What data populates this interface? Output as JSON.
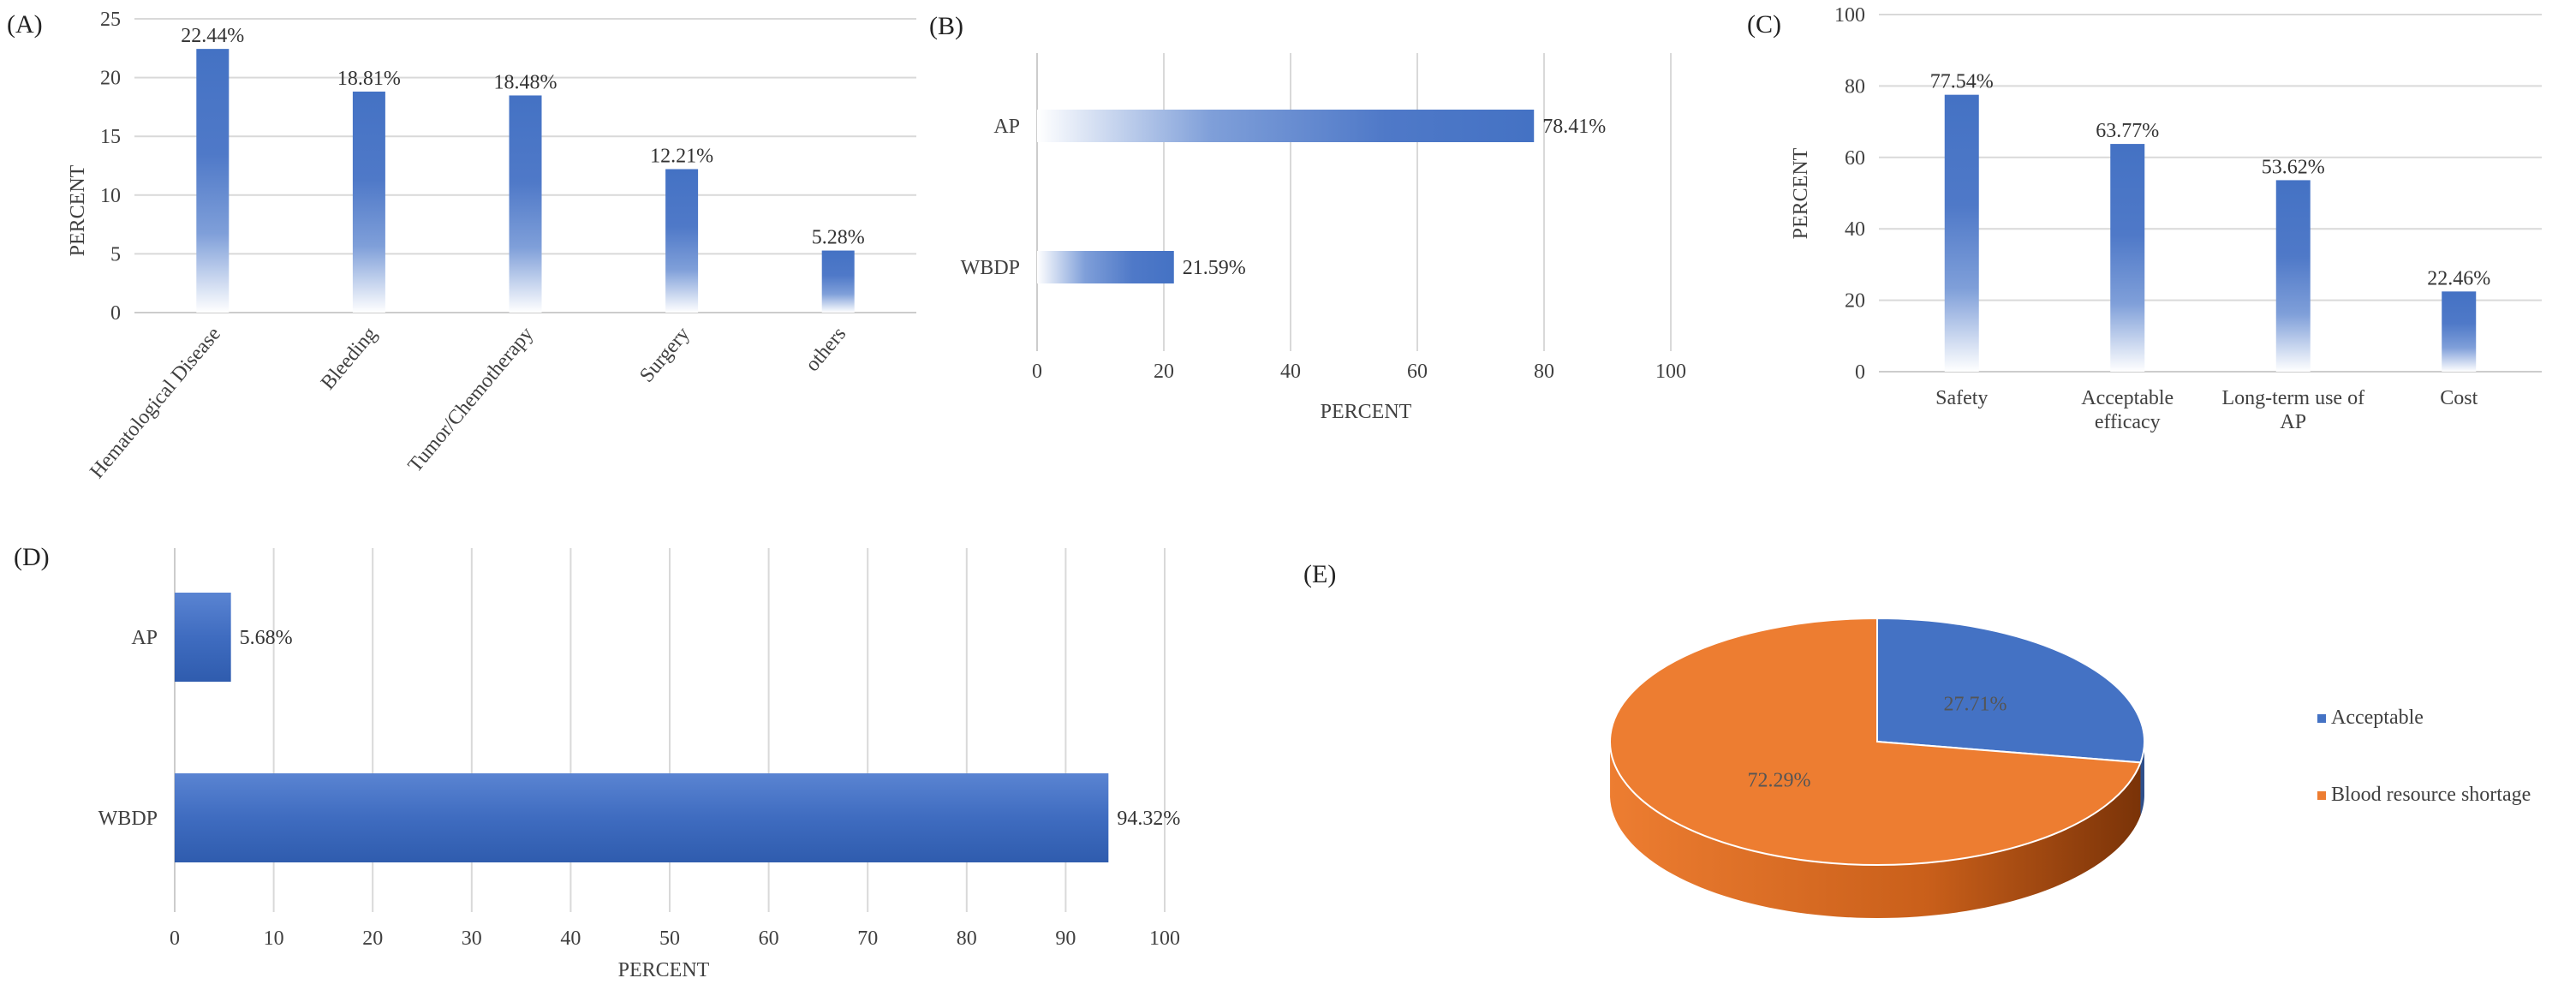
{
  "panels": {
    "A": {
      "label": "(A)",
      "chart_data": {
        "type": "bar",
        "orientation": "vertical",
        "categories": [
          "Hematological Disease",
          "Bleeding",
          "Tumor/Chemotherapy",
          "Surgery",
          "others"
        ],
        "values": [
          22.44,
          18.81,
          18.48,
          12.21,
          5.28
        ],
        "data_labels": [
          "22.44%",
          "18.81%",
          "18.48%",
          "12.21%",
          "5.28%"
        ],
        "ylabel": "PERCENT",
        "xlabel": "",
        "ylim": [
          0,
          25
        ],
        "yticks": [
          "0",
          "5",
          "10",
          "15",
          "20",
          "25"
        ],
        "grid": true
      }
    },
    "B": {
      "label": "(B)",
      "chart_data": {
        "type": "bar",
        "orientation": "horizontal",
        "categories": [
          "AP",
          "WBDP"
        ],
        "values": [
          78.41,
          21.59
        ],
        "data_labels": [
          "78.41%",
          "21.59%"
        ],
        "xlabel": "PERCENT",
        "ylabel": "",
        "xlim": [
          0,
          100
        ],
        "xticks": [
          "0",
          "20",
          "40",
          "60",
          "80",
          "100"
        ],
        "grid": true
      }
    },
    "C": {
      "label": "(C)",
      "chart_data": {
        "type": "bar",
        "orientation": "vertical",
        "categories": [
          [
            "Safety"
          ],
          [
            "Acceptable",
            "efficacy"
          ],
          [
            "Long-term use of",
            "AP"
          ],
          [
            "Cost"
          ]
        ],
        "values": [
          77.54,
          63.77,
          53.62,
          22.46
        ],
        "data_labels": [
          "77.54%",
          "63.77%",
          "53.62%",
          "22.46%"
        ],
        "ylabel": "PERCENT",
        "xlabel": "",
        "ylim": [
          0,
          100
        ],
        "yticks": [
          "0",
          "20",
          "40",
          "60",
          "80",
          "100"
        ],
        "grid": true
      }
    },
    "D": {
      "label": "(D)",
      "chart_data": {
        "type": "bar",
        "orientation": "horizontal",
        "categories": [
          "AP",
          "WBDP"
        ],
        "values": [
          5.68,
          94.32
        ],
        "data_labels": [
          "5.68%",
          "94.32%"
        ],
        "xlabel": "PERCENT",
        "ylabel": "",
        "xlim": [
          0,
          100
        ],
        "xticks": [
          "0",
          "10",
          "20",
          "30",
          "40",
          "50",
          "60",
          "70",
          "80",
          "90",
          "100"
        ],
        "grid": true
      }
    },
    "E": {
      "label": "(E)",
      "chart_data": {
        "type": "pie",
        "style": "3d",
        "slices": [
          {
            "name": "Acceptable",
            "value": 27.71,
            "label": "27.71%",
            "color": "#4472C4"
          },
          {
            "name": "Blood resource shortage",
            "value": 72.29,
            "label": "72.29%",
            "color": "#ED7D31"
          }
        ],
        "legend_position": "right"
      }
    }
  },
  "colors": {
    "bar": "#4472C4",
    "bar_light": "#ffffff",
    "orange": "#ED7D31",
    "orange_dark": "#A0410D",
    "blue_dark": "#2E4F8A"
  }
}
